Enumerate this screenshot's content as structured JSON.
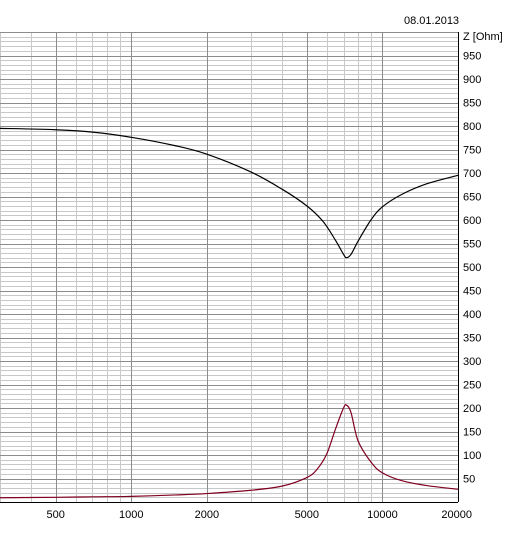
{
  "date": "08.01.2013",
  "chart_data": {
    "type": "line",
    "ylabel": "Z [Ohm]",
    "xscale": "log",
    "xlim": [
      300,
      20000
    ],
    "ylim": [
      0,
      1000
    ],
    "grid": true,
    "x_tick_labels": [
      "500",
      "1000",
      "2000",
      "5000",
      "10000",
      "20000"
    ],
    "x_ticks": [
      500,
      1000,
      2000,
      5000,
      10000,
      20000
    ],
    "y_ticks": [
      50,
      100,
      150,
      200,
      250,
      300,
      350,
      400,
      450,
      500,
      550,
      600,
      650,
      700,
      750,
      800,
      850,
      900,
      950
    ],
    "y_tick_labels": [
      "50",
      "100",
      "150",
      "200",
      "250",
      "300",
      "350",
      "400",
      "450",
      "500",
      "550",
      "600",
      "650",
      "700",
      "750",
      "800",
      "850",
      "900",
      "950"
    ],
    "series": [
      {
        "color": "#000000",
        "x": [
          300,
          500,
          700,
          1000,
          1500,
          2000,
          3000,
          4000,
          5000,
          5800,
          6500,
          7000,
          7200,
          7500,
          8000,
          9000,
          10000,
          12000,
          15000,
          20000
        ],
        "y": [
          795,
          792,
          787,
          776,
          758,
          740,
          702,
          665,
          630,
          597,
          557,
          527,
          520,
          527,
          555,
          600,
          628,
          655,
          677,
          695
        ]
      },
      {
        "color": "#800020",
        "x": [
          300,
          500,
          700,
          1000,
          1500,
          2000,
          3000,
          4000,
          5000,
          5500,
          6000,
          6500,
          7000,
          7200,
          7500,
          8000,
          9000,
          10000,
          12000,
          15000,
          20000
        ],
        "y": [
          9,
          10,
          11,
          12,
          15,
          18,
          25,
          34,
          52,
          70,
          102,
          155,
          200,
          206,
          190,
          130,
          85,
          62,
          45,
          35,
          27
        ]
      }
    ]
  }
}
